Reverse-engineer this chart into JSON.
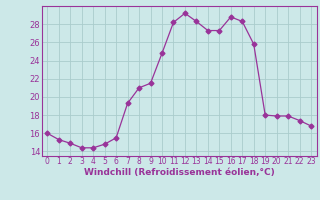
{
  "x": [
    0,
    1,
    2,
    3,
    4,
    5,
    6,
    7,
    8,
    9,
    10,
    11,
    12,
    13,
    14,
    15,
    16,
    17,
    18,
    19,
    20,
    21,
    22,
    23
  ],
  "y": [
    16.0,
    15.3,
    14.9,
    14.4,
    14.4,
    14.8,
    15.5,
    19.3,
    21.0,
    21.5,
    24.8,
    28.2,
    29.2,
    28.3,
    27.3,
    27.3,
    28.8,
    28.3,
    25.8,
    18.0,
    17.9,
    17.9,
    17.4,
    16.8
  ],
  "line_color": "#993399",
  "marker": "D",
  "marker_size": 2.5,
  "bg_color": "#cce8e8",
  "grid_color": "#aacccc",
  "xlabel": "Windchill (Refroidissement éolien,°C)",
  "xlabel_color": "#993399",
  "tick_color": "#993399",
  "ylim": [
    13.5,
    30.0
  ],
  "xlim": [
    -0.5,
    23.5
  ],
  "yticks": [
    14,
    16,
    18,
    20,
    22,
    24,
    26,
    28
  ],
  "xticks": [
    0,
    1,
    2,
    3,
    4,
    5,
    6,
    7,
    8,
    9,
    10,
    11,
    12,
    13,
    14,
    15,
    16,
    17,
    18,
    19,
    20,
    21,
    22,
    23
  ],
  "xtick_fontsize": 5.5,
  "ytick_fontsize": 6.0,
  "xlabel_fontsize": 6.5
}
